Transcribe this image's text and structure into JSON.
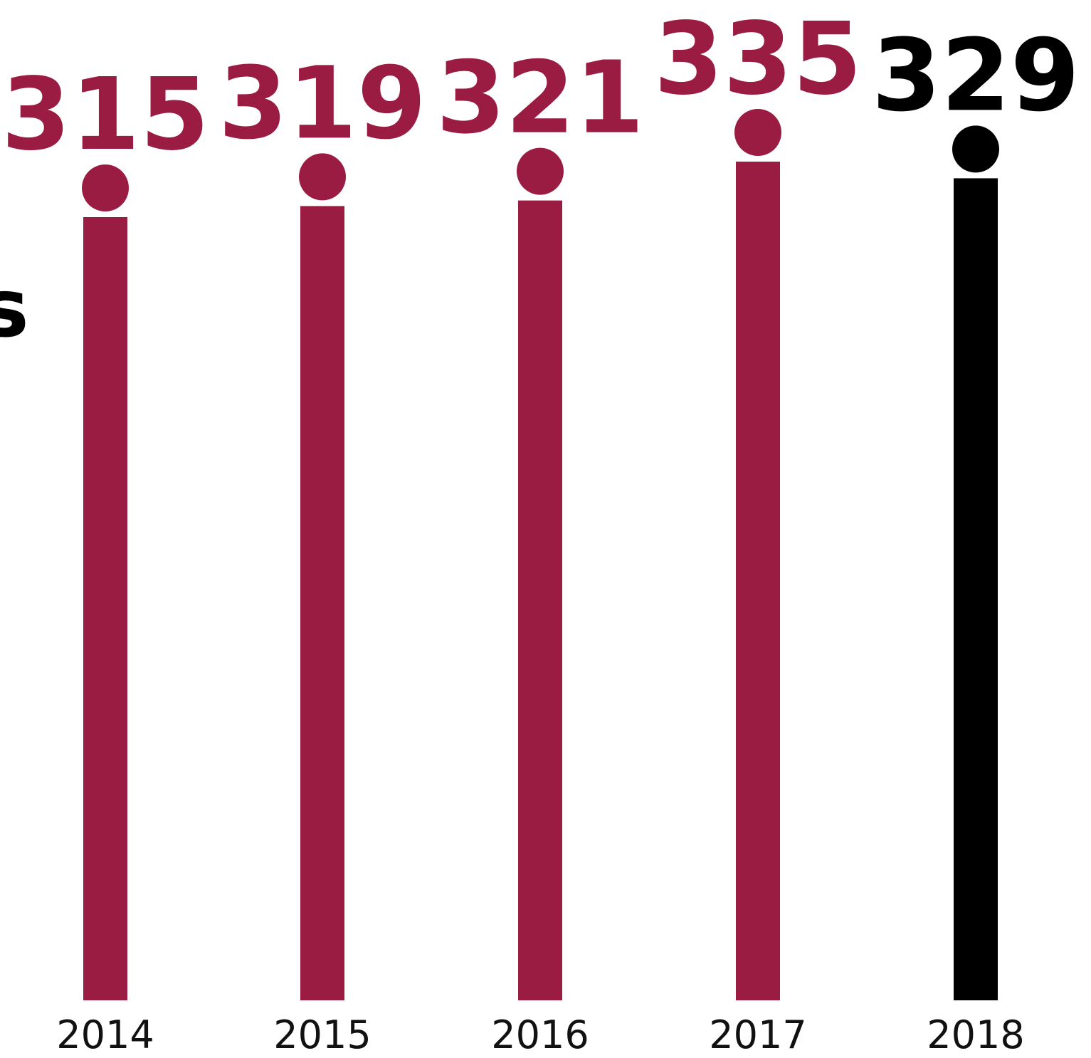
{
  "side_text": "s",
  "colors": {
    "highlight": "#9b1c43",
    "current": "#000000",
    "axis_label": "#111111"
  },
  "chart_data": {
    "type": "bar",
    "style": "lollipop",
    "categories": [
      "2014",
      "2015",
      "2016",
      "2017",
      "2018"
    ],
    "values": [
      315,
      319,
      321,
      335,
      329
    ],
    "value_labels": [
      "315",
      "319",
      "321",
      "335",
      "329"
    ],
    "highlight_category": "2018"
  }
}
